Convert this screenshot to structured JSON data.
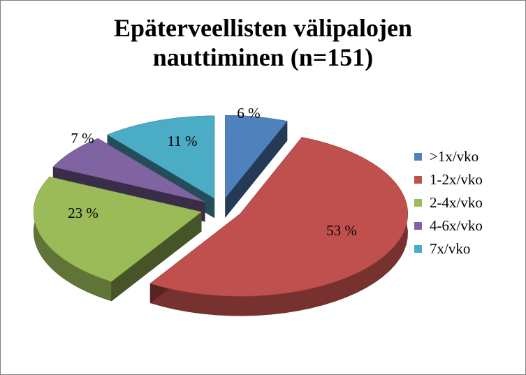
{
  "chart_data": {
    "type": "pie",
    "title_lines": [
      "Epäterveellisten välipalojen",
      "nauttiminen (n=151)"
    ],
    "categories": [
      ">1x/vko",
      "1-2x/vko",
      "2-4x/vko",
      "4-6x/vko",
      "7x/vko"
    ],
    "values": [
      6,
      53,
      23,
      7,
      11
    ],
    "data_labels": [
      "6 %",
      "53 %",
      "23 %",
      "7 %",
      "11 %"
    ],
    "colors": [
      "#4f81bd",
      "#c0504d",
      "#9bbb59",
      "#8064a2",
      "#4bacc6"
    ],
    "exploded": true,
    "three_d": true,
    "legend_position": "right"
  }
}
